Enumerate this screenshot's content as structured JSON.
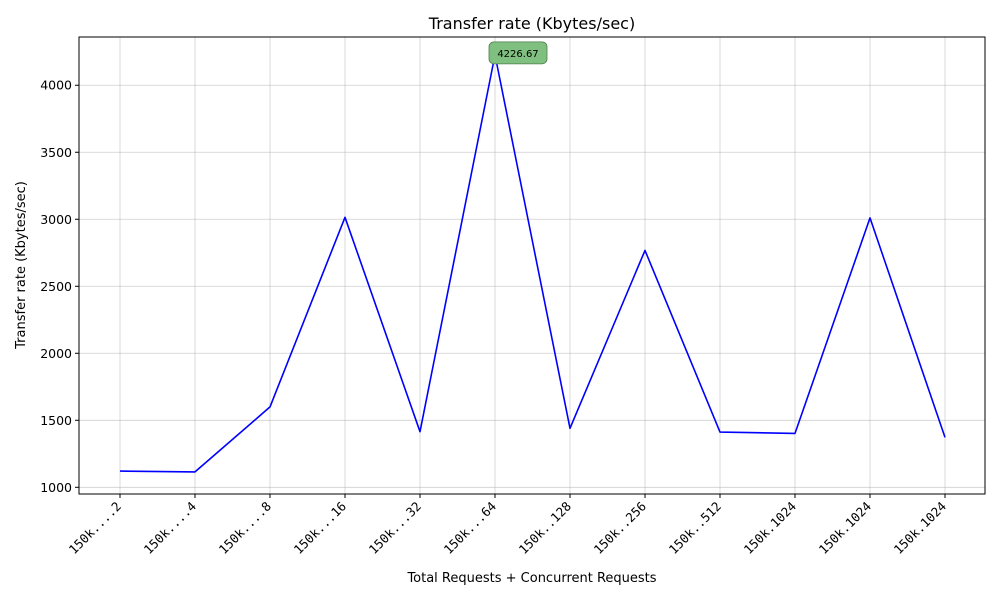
{
  "chart_data": {
    "type": "line",
    "title": "Transfer rate (Kbytes/sec)",
    "xlabel": "Total Requests + Concurrent Requests",
    "ylabel": "Transfer rate (Kbytes/sec)",
    "categories": [
      "150k....2",
      "150k....4",
      "150k....8",
      "150k...16",
      "150k...32",
      "150k...64",
      "150k..128",
      "150k..256",
      "150k..512",
      "150k.1024",
      "150k.1024",
      "150k.1024"
    ],
    "series": [
      {
        "values": [
          1121,
          1115,
          1600,
          3015,
          1415,
          4226.67,
          1440,
          2768,
          1412,
          1402,
          3010,
          1372
        ],
        "color": "#0000ff"
      }
    ],
    "ylim": [
      950,
      4360
    ],
    "yticks": [
      1000,
      1500,
      2000,
      2500,
      3000,
      3500,
      4000
    ],
    "grid": true,
    "annotation": {
      "label": "4226.67",
      "index": 5,
      "marker_color": "#008000",
      "box_color": "#7fbf7f"
    }
  }
}
